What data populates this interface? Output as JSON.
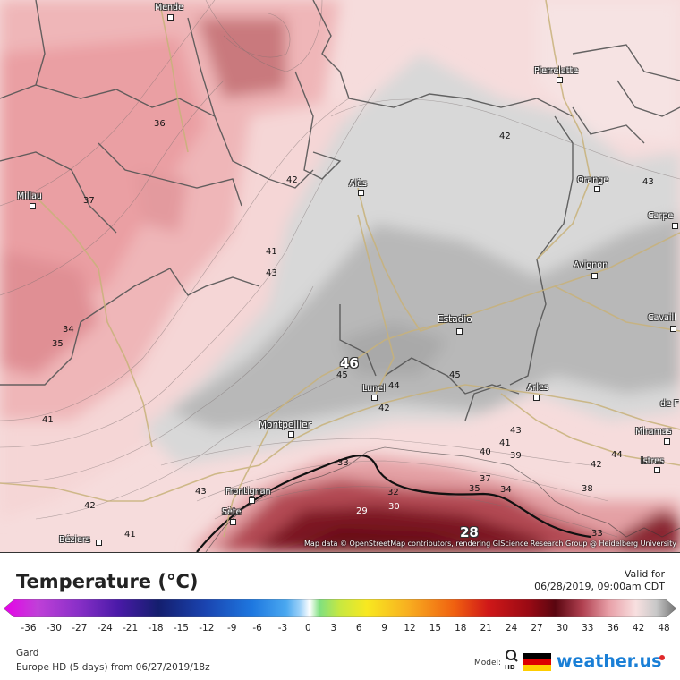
{
  "map": {
    "region": "Gard",
    "attribution": "Map data © OpenStreetMap contributors, rendering GIScience Research Group @ Heidelberg University",
    "max_value_label": "46",
    "min_value_label": "28",
    "cities": [
      {
        "name": "Mende"
      },
      {
        "name": "Pierrelatte"
      },
      {
        "name": "Millau"
      },
      {
        "name": "Alès"
      },
      {
        "name": "Orange"
      },
      {
        "name": "Carpe"
      },
      {
        "name": "Avignon"
      },
      {
        "name": "Estadio"
      },
      {
        "name": "Cavaill"
      },
      {
        "name": "Lunel"
      },
      {
        "name": "Arles"
      },
      {
        "name": "Montpellier"
      },
      {
        "name": "Miramas"
      },
      {
        "name": "Istres"
      },
      {
        "name": "Frontignan"
      },
      {
        "name": "Sète"
      },
      {
        "name": "Béziers"
      },
      {
        "name": "de F"
      }
    ],
    "contour_labels": [
      "36",
      "42",
      "42",
      "43",
      "37",
      "41",
      "43",
      "34",
      "35",
      "41",
      "45",
      "45",
      "44",
      "42",
      "43",
      "41",
      "40",
      "39",
      "42",
      "44",
      "33",
      "37",
      "35",
      "34",
      "38",
      "32",
      "30",
      "29",
      "43",
      "42",
      "41",
      "33"
    ]
  },
  "legend": {
    "title": "Temperature (°C)",
    "valid_for_label": "Valid for",
    "valid_time": "06/28/2019, 09:00am CDT",
    "ticks": [
      "-36",
      "-30",
      "-27",
      "-24",
      "-21",
      "-18",
      "-15",
      "-12",
      "-9",
      "-6",
      "-3",
      "0",
      "3",
      "6",
      "9",
      "12",
      "15",
      "18",
      "21",
      "24",
      "27",
      "30",
      "33",
      "36",
      "42",
      "48"
    ],
    "region": "Gard",
    "model_line": "Europe HD (5 days) from 06/27/2019/18z",
    "model_label": "Model:",
    "model_hd": "HD",
    "brand": "weather.us"
  }
}
